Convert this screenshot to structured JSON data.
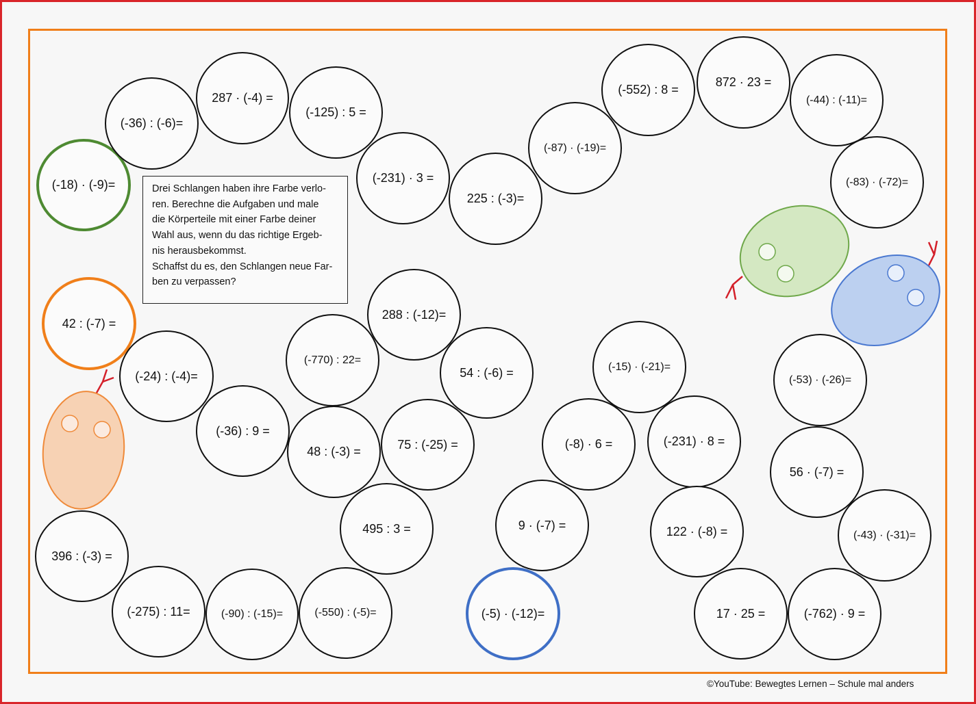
{
  "instructions": {
    "line1": "Drei Schlangen haben ihre Farbe verlo-\nren. Berechne die Aufgaben und male\ndie Körperteile mit einer Farbe deiner\nWahl aus, wenn du das richtige Ergeb-\nnis herausbekommst.",
    "line2": "Schaffst du es, den Schlangen neue Far-\nben zu verpassen?"
  },
  "snake_heads": [
    {
      "color": "#d4e8c2",
      "stroke": "#6fa84a",
      "name": "green"
    },
    {
      "color": "#bcd0f0",
      "stroke": "#4a78d0",
      "name": "blue"
    },
    {
      "color": "#f7d2b4",
      "stroke": "#ef8a3a",
      "name": "orange"
    }
  ],
  "tongue_color": "#d4202a",
  "tasks": [
    "(-18) · (-9)=",
    "(-36) : (-6)=",
    "287 · (-4) =",
    "(-125) : 5 =",
    "(-231) · 3 =",
    "225 : (-3)=",
    "(-87) · (-19)=",
    "(-552) : 8 =",
    "872 · 23 =",
    "(-44) : (-11)=",
    "(-83) · (-72)=",
    "42 : (-7) =",
    "(-24) : (-4)=",
    "(-36) : 9 =",
    "(-770) : 22=",
    "288 : (-12)=",
    "54 : (-6) =",
    "48 : (-3) =",
    "75 : (-25) =",
    "495 : 3 =",
    "396 : (-3) =",
    "(-275) : 11=",
    "(-90) : (-15)=",
    "(-550) : (-5)=",
    "9 · (-7) =",
    "(-5) · (-12)=",
    "(-15) · (-21)=",
    "(-8) · 6 =",
    "(-231) · 8 =",
    "122 · (-8) =",
    "17 · 25 =",
    "(-53) · (-26)=",
    "56 · (-7) =",
    "(-43) · (-31)=",
    "(-762) · 9 ="
  ],
  "copyright": "©YouTube: Bewegtes Lernen – Schule mal anders"
}
